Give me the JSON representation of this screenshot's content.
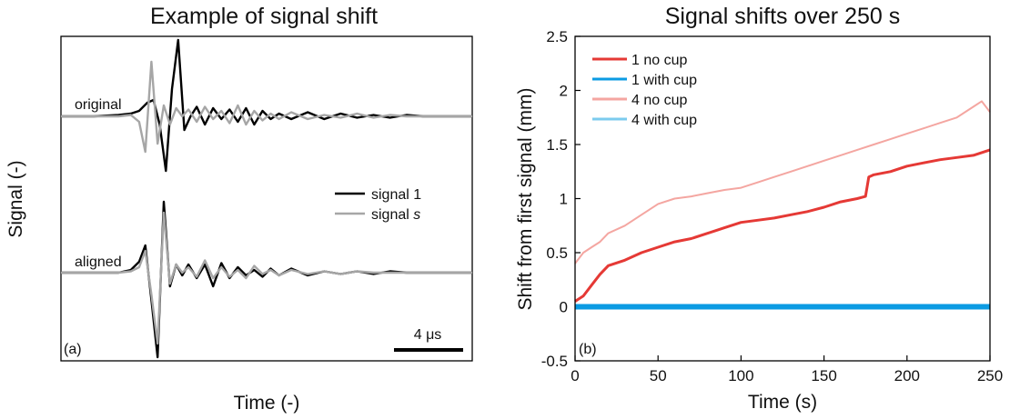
{
  "chart_data": [
    {
      "type": "line",
      "title": "Example of signal shift",
      "xlabel": "Time (-)",
      "ylabel": "Signal (-)",
      "panel_label": "(a)",
      "trace_labels": [
        "original",
        "aligned"
      ],
      "scale_bar_label": "4 μs",
      "legend": {
        "position": "center-right",
        "entries": [
          {
            "name_prefix": "signal 1",
            "name_italic": "",
            "color": "#000000"
          },
          {
            "name_prefix": "signal ",
            "name_italic": "s",
            "color": "#a6a6a6"
          }
        ]
      },
      "series": [
        {
          "name": "signal 1",
          "trace": "original",
          "color": "#000000",
          "x": [
            0,
            8,
            14,
            17,
            19,
            21,
            22.5,
            24,
            25.5,
            27,
            28.5,
            30,
            31.5,
            33,
            35,
            37,
            39,
            41,
            43,
            45,
            47,
            49,
            51,
            53,
            56,
            60,
            64,
            68,
            72,
            76,
            80,
            84,
            88,
            92,
            100
          ],
          "y": [
            0,
            0,
            0.05,
            0.1,
            0.2,
            0.5,
            0.6,
            -0.3,
            -2.0,
            1.0,
            2.8,
            -0.5,
            0,
            0.35,
            -0.3,
            0.3,
            -0.1,
            0.25,
            -0.2,
            0.3,
            -0.3,
            0.2,
            -0.1,
            0.1,
            -0.1,
            0.15,
            -0.1,
            0.1,
            -0.05,
            0.05,
            -0.05,
            0.05,
            0,
            0,
            0
          ]
        },
        {
          "name": "signal s",
          "trace": "original",
          "color": "#a6a6a6",
          "x": [
            0,
            8,
            14,
            17,
            19,
            20.5,
            22,
            23.5,
            25,
            26.5,
            28,
            29.5,
            31,
            33,
            35,
            37,
            39,
            41,
            43,
            45,
            47,
            49,
            51,
            53,
            56,
            60,
            64,
            68,
            72,
            76,
            80,
            84,
            88,
            92,
            100
          ],
          "y": [
            0,
            0,
            0,
            0.05,
            -0.2,
            -1.3,
            2.0,
            -1.0,
            0.4,
            -0.3,
            0.3,
            0,
            0.25,
            -0.2,
            0.35,
            -0.1,
            0.2,
            -0.25,
            0.4,
            -0.3,
            0.2,
            -0.15,
            0.1,
            -0.1,
            0.15,
            -0.1,
            0.05,
            -0.05,
            0.1,
            -0.05,
            0.05,
            0,
            0,
            0,
            0
          ]
        },
        {
          "name": "signal 1",
          "trace": "aligned",
          "color": "#000000",
          "x": [
            0,
            8,
            14,
            17,
            19,
            20.5,
            22,
            23.5,
            25,
            26.5,
            28,
            29.5,
            31,
            33,
            35,
            37,
            39,
            41,
            43,
            45,
            47,
            49,
            51,
            53,
            56,
            60,
            64,
            68,
            72,
            76,
            80,
            84,
            88,
            92,
            100
          ],
          "y": [
            0,
            0,
            0,
            0.1,
            0.4,
            1.0,
            -1.0,
            -3.1,
            2.6,
            -0.5,
            0.3,
            -0.1,
            0.3,
            -0.2,
            0.3,
            -0.5,
            0.35,
            -0.2,
            0.2,
            -0.1,
            0.1,
            -0.15,
            0.15,
            -0.1,
            0.15,
            -0.1,
            0.05,
            -0.05,
            0.05,
            -0.05,
            0.05,
            0,
            0,
            0,
            0
          ]
        },
        {
          "name": "signal s",
          "trace": "aligned",
          "color": "#a6a6a6",
          "x": [
            0,
            8,
            14,
            17,
            19,
            20.5,
            22,
            23.5,
            25,
            26.5,
            28,
            29.5,
            31,
            33,
            35,
            37,
            39,
            41,
            43,
            45,
            47,
            49,
            51,
            53,
            56,
            60,
            64,
            68,
            72,
            76,
            80,
            84,
            88,
            92,
            100
          ],
          "y": [
            0,
            0,
            0,
            0.05,
            0.2,
            0.8,
            -0.8,
            -2.6,
            2.2,
            -0.4,
            0.3,
            0,
            0.2,
            -0.15,
            0.45,
            -0.2,
            0.2,
            -0.15,
            0.1,
            -0.2,
            0.25,
            -0.05,
            0.1,
            -0.1,
            0.1,
            -0.05,
            0.05,
            -0.05,
            0.05,
            0,
            0,
            0,
            0,
            0,
            0
          ]
        }
      ]
    },
    {
      "type": "line",
      "title": "Signal shifts over 250 s",
      "xlabel": "Time (s)",
      "ylabel": "Shift from first signal (mm)",
      "panel_label": "(b)",
      "xlim": [
        0,
        250
      ],
      "ylim": [
        -0.5,
        2.5
      ],
      "xticks": [
        0,
        50,
        100,
        150,
        200,
        250
      ],
      "yticks": [
        -0.5,
        0,
        0.5,
        1,
        1.5,
        2,
        2.5
      ],
      "grid": false,
      "legend": {
        "position": "top-left"
      },
      "series": [
        {
          "name": "4 no cup",
          "color": "#f4a6a1",
          "width": 2,
          "x": [
            0,
            5,
            10,
            15,
            20,
            30,
            40,
            50,
            60,
            70,
            80,
            90,
            100,
            110,
            120,
            130,
            140,
            150,
            160,
            170,
            180,
            190,
            200,
            210,
            220,
            230,
            240,
            245,
            250
          ],
          "y": [
            0.4,
            0.5,
            0.55,
            0.6,
            0.68,
            0.75,
            0.85,
            0.95,
            1.0,
            1.02,
            1.05,
            1.08,
            1.1,
            1.15,
            1.2,
            1.25,
            1.3,
            1.35,
            1.4,
            1.45,
            1.5,
            1.55,
            1.6,
            1.65,
            1.7,
            1.75,
            1.85,
            1.9,
            1.8
          ]
        },
        {
          "name": "1 no cup",
          "color": "#e53935",
          "width": 3,
          "x": [
            0,
            5,
            10,
            15,
            20,
            30,
            40,
            50,
            60,
            70,
            80,
            90,
            100,
            110,
            120,
            130,
            140,
            150,
            160,
            170,
            175,
            177,
            180,
            190,
            200,
            210,
            220,
            230,
            240,
            250
          ],
          "y": [
            0.05,
            0.1,
            0.2,
            0.3,
            0.38,
            0.43,
            0.5,
            0.55,
            0.6,
            0.63,
            0.68,
            0.73,
            0.78,
            0.8,
            0.82,
            0.85,
            0.88,
            0.92,
            0.97,
            1.0,
            1.02,
            1.2,
            1.22,
            1.25,
            1.3,
            1.33,
            1.36,
            1.38,
            1.4,
            1.45
          ]
        },
        {
          "name": "4 with cup",
          "color": "#7ccbee",
          "width": 2,
          "x": [
            0,
            250
          ],
          "y": [
            0,
            0
          ]
        },
        {
          "name": "1 with cup",
          "color": "#0b9be3",
          "width": 6,
          "x": [
            0,
            250
          ],
          "y": [
            0,
            0
          ]
        }
      ]
    }
  ]
}
